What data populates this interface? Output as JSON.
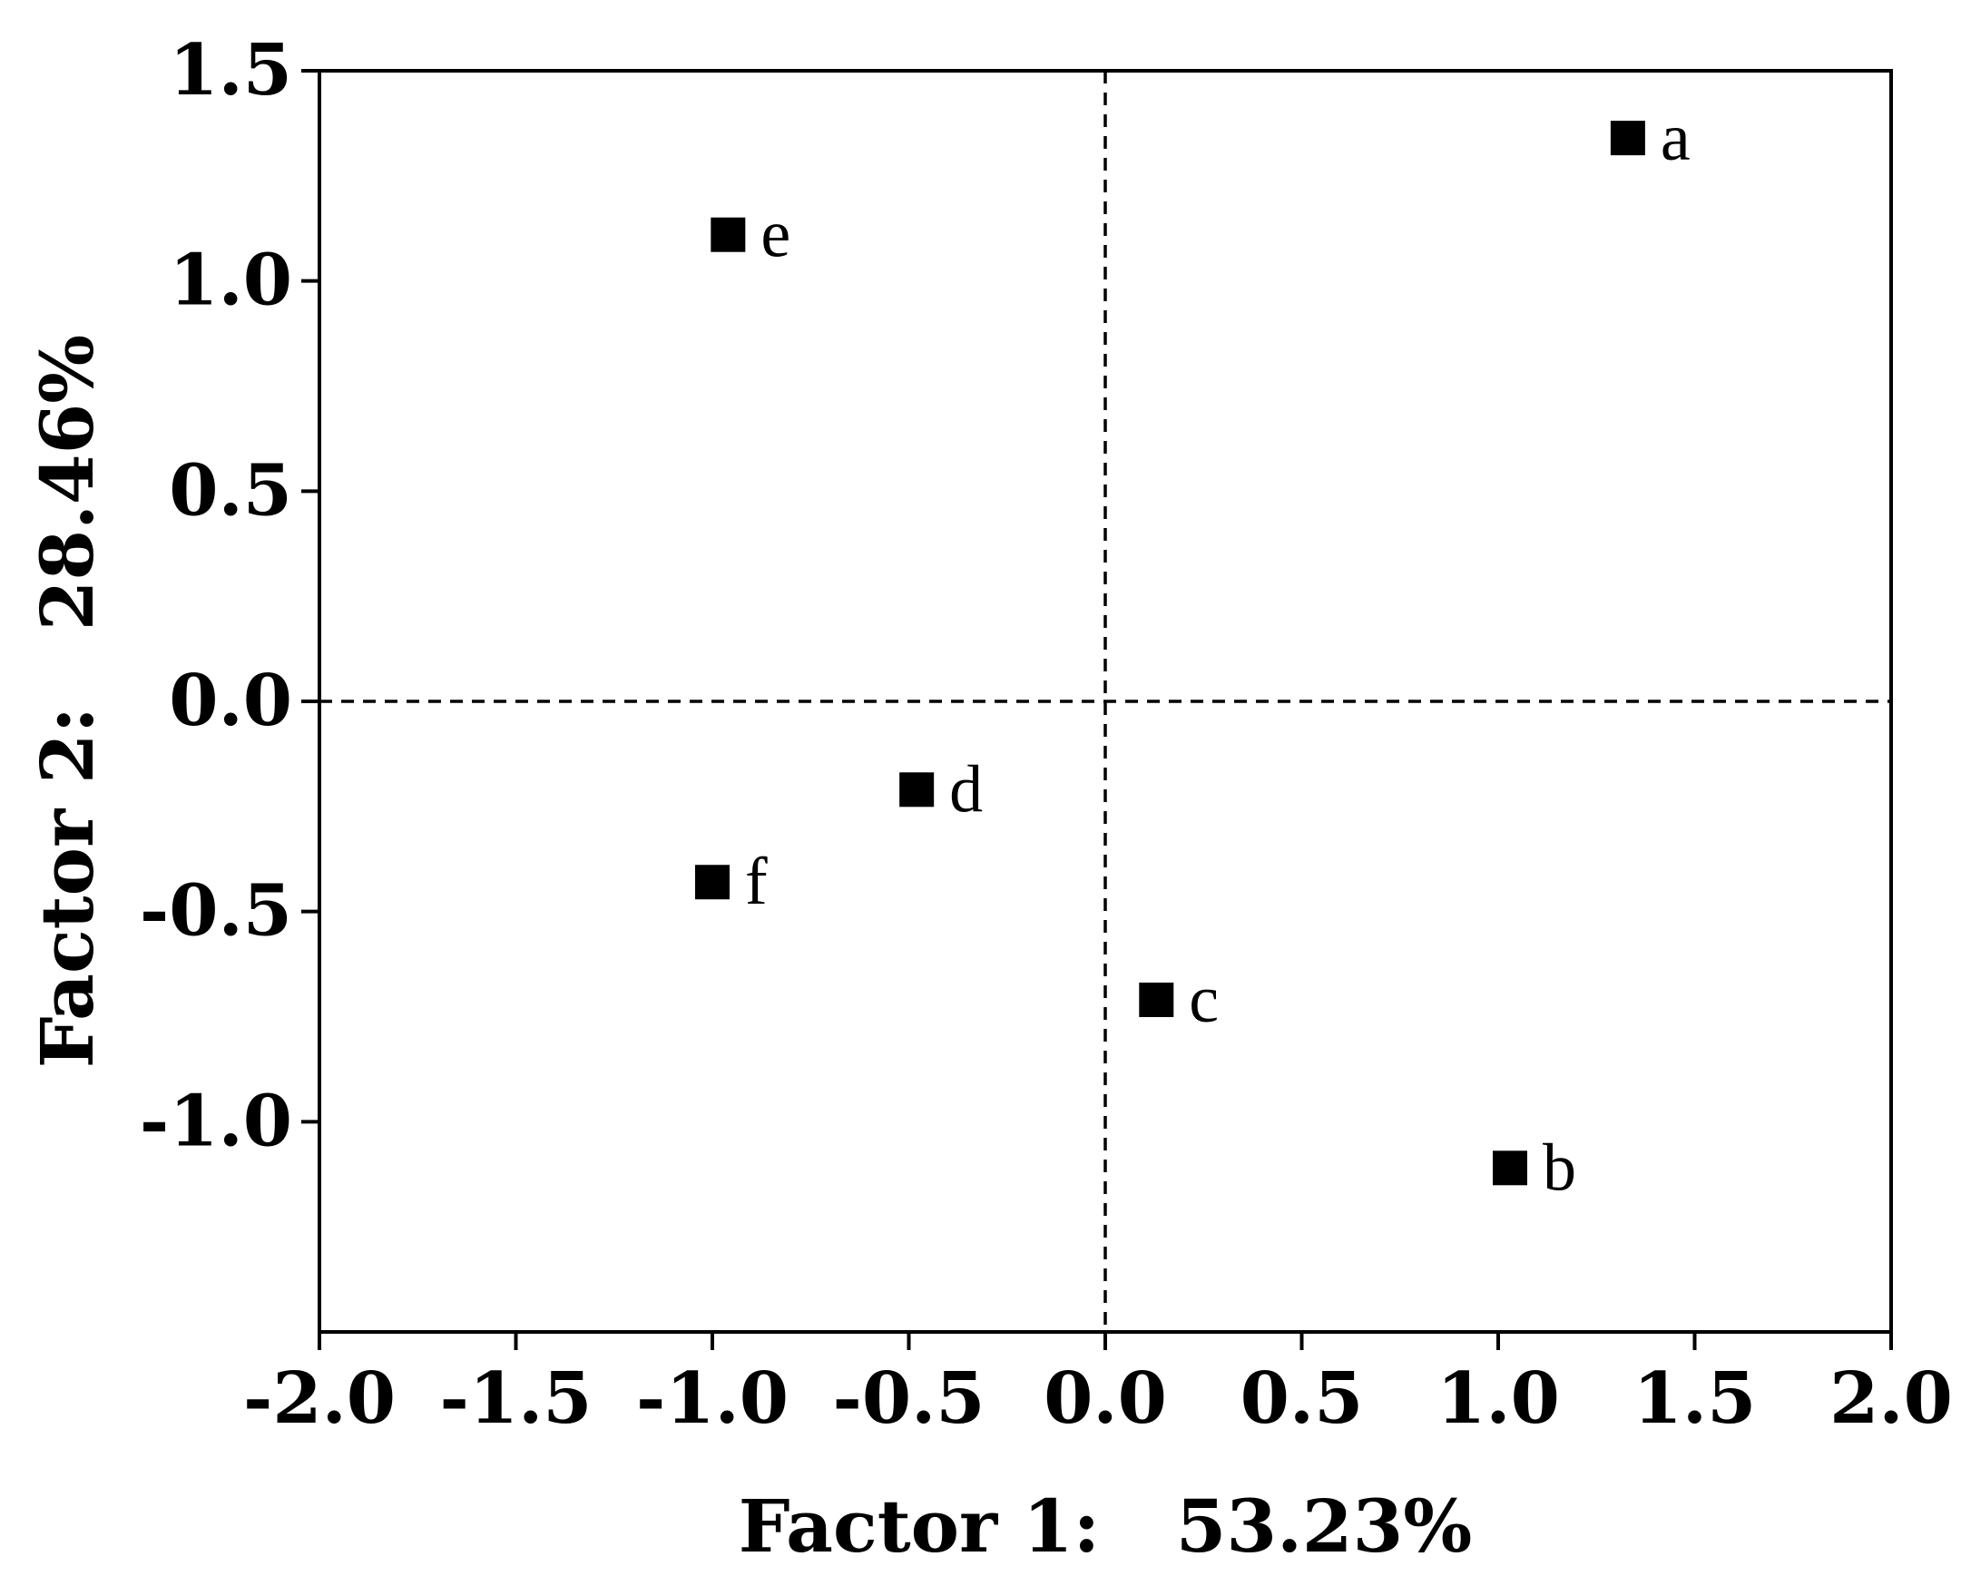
{
  "chart_data": {
    "type": "scatter",
    "title": "",
    "xlabel": "Factor 1:   53.23%",
    "ylabel": "Factor 2:   28.46%",
    "xlim": [
      -2.0,
      2.0
    ],
    "ylim": [
      -1.5,
      1.5
    ],
    "x_ticks": [
      -2.0,
      -1.5,
      -1.0,
      -0.5,
      0.0,
      0.5,
      1.0,
      1.5,
      2.0
    ],
    "x_tick_labels": [
      "-2.0",
      "-1.5",
      "-1.0",
      "-0.5",
      "0.0",
      "0.5",
      "1.0",
      "1.5",
      "2.0"
    ],
    "y_ticks": [
      -1.0,
      -0.5,
      0.0,
      0.5,
      1.0,
      1.5
    ],
    "y_tick_labels": [
      "-1.0",
      "-0.5",
      "0.0",
      "0.5",
      "1.0",
      "1.5"
    ],
    "reference_lines": {
      "x": 0.0,
      "y": 0.0,
      "style": "dashed"
    },
    "grid": false,
    "marker": "square",
    "marker_color": "#000000",
    "points": [
      {
        "label": "a",
        "x": 1.33,
        "y": 1.34
      },
      {
        "label": "b",
        "x": 1.03,
        "y": -1.11
      },
      {
        "label": "c",
        "x": 0.13,
        "y": -0.71
      },
      {
        "label": "d",
        "x": -0.48,
        "y": -0.21
      },
      {
        "label": "e",
        "x": -0.96,
        "y": 1.11
      },
      {
        "label": "f",
        "x": -1.0,
        "y": -0.43
      }
    ]
  }
}
